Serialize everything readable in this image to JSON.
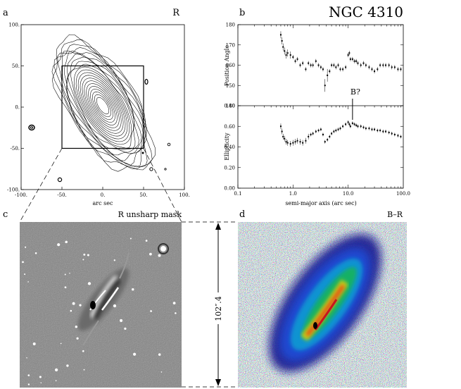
{
  "figure": {
    "title": "NGC 4310",
    "panel_letters": {
      "a": "a",
      "b": "b",
      "c": "c",
      "d": "d"
    }
  },
  "panel_a": {
    "filter_label": "R",
    "xlabel": "arc sec",
    "x_ticks": [
      "-100.",
      "-50.",
      "0.",
      "50.",
      "100."
    ],
    "y_ticks": [
      "100.",
      "50.",
      "0.",
      "-50.",
      "-100."
    ],
    "xlim": [
      -100,
      100
    ],
    "ylim": [
      -100,
      100
    ],
    "inset_box": {
      "x": [
        -50,
        50
      ],
      "y": [
        -50,
        50
      ]
    }
  },
  "panel_c": {
    "caption": "R unsharp mask"
  },
  "panel_d": {
    "caption": "B–R"
  },
  "scale_bar": {
    "label": "102″.4"
  },
  "colors": {
    "ink": "#000000",
    "mask_bg": "#808080",
    "colormap": [
      "#0a0a8c",
      "#1e50dc",
      "#0fa0d2",
      "#14b45a",
      "#c8d214",
      "#e65014",
      "#c8141e"
    ]
  },
  "chart_data": [
    {
      "type": "scatter",
      "panel": "b-top",
      "title": "",
      "xlabel": "semi-major axis (arc sec)",
      "ylabel": "Position Angle",
      "xscale": "log",
      "xlim": [
        0.1,
        100
      ],
      "ylim": [
        140,
        180
      ],
      "x_ticks": [
        "0.1",
        "1.0",
        "10.0",
        "100.0"
      ],
      "y_ticks": [
        "140",
        "150",
        "160",
        "170",
        "180"
      ],
      "annotation": "B?",
      "annotation_x": 12,
      "series": [
        {
          "x": [
            0.6,
            0.63,
            0.66,
            0.7,
            0.75,
            0.8,
            0.9,
            1.0,
            1.1,
            1.2,
            1.35,
            1.5,
            1.7,
            1.9,
            2.1,
            2.3,
            2.6,
            2.9,
            3.2,
            3.5,
            3.8,
            4.2,
            4.6,
            5.0,
            5.5,
            6.0,
            6.6,
            7.2,
            8.0,
            9.0,
            10.0,
            10.5,
            11.0,
            12.0,
            13.0,
            14.0,
            15.0,
            17.0,
            19.0,
            21.0,
            24.0,
            27.0,
            30.0,
            34.0,
            38.0,
            43.0,
            48.0,
            55.0,
            62.0,
            70.0,
            80.0,
            90.0
          ],
          "y": [
            175,
            172,
            169,
            167,
            165,
            166,
            165,
            164,
            162,
            163,
            160,
            161,
            158,
            161,
            160,
            160,
            162,
            160,
            159,
            158,
            150,
            155,
            157,
            160,
            160,
            159,
            160,
            158,
            158,
            159,
            165,
            166,
            163,
            163,
            162,
            162,
            161,
            160,
            161,
            160,
            159,
            158,
            157,
            158,
            160,
            160,
            160,
            160,
            159,
            159,
            158,
            158
          ]
        }
      ]
    },
    {
      "type": "scatter",
      "panel": "b-bottom",
      "title": "",
      "xlabel": "semi-major axis (arc sec)",
      "ylabel": "Ellipticity",
      "xscale": "log",
      "xlim": [
        0.1,
        100
      ],
      "ylim": [
        0.0,
        0.8
      ],
      "x_ticks": [
        "0.1",
        "1.0",
        "10.0",
        "100.0"
      ],
      "y_ticks": [
        "0.00",
        "0.20",
        "0.40",
        "0.60",
        "0.80"
      ],
      "series": [
        {
          "x": [
            0.6,
            0.63,
            0.66,
            0.7,
            0.75,
            0.8,
            0.9,
            1.0,
            1.1,
            1.2,
            1.35,
            1.5,
            1.7,
            1.9,
            2.1,
            2.3,
            2.6,
            2.9,
            3.2,
            3.5,
            3.8,
            4.2,
            4.6,
            5.0,
            5.5,
            6.0,
            6.6,
            7.2,
            8.0,
            9.0,
            10.0,
            10.5,
            11.0,
            12.0,
            13.0,
            14.0,
            15.0,
            17.0,
            19.0,
            21.0,
            24.0,
            27.0,
            30.0,
            34.0,
            38.0,
            43.0,
            48.0,
            55.0,
            62.0,
            70.0,
            80.0,
            90.0
          ],
          "y": [
            0.6,
            0.55,
            0.5,
            0.48,
            0.45,
            0.44,
            0.43,
            0.44,
            0.45,
            0.46,
            0.45,
            0.44,
            0.46,
            0.5,
            0.52,
            0.53,
            0.55,
            0.56,
            0.57,
            0.52,
            0.45,
            0.47,
            0.5,
            0.53,
            0.55,
            0.56,
            0.57,
            0.58,
            0.6,
            0.62,
            0.64,
            0.62,
            0.6,
            0.63,
            0.62,
            0.61,
            0.6,
            0.6,
            0.59,
            0.58,
            0.58,
            0.57,
            0.57,
            0.56,
            0.56,
            0.55,
            0.55,
            0.54,
            0.53,
            0.52,
            0.51,
            0.5
          ]
        }
      ]
    }
  ]
}
